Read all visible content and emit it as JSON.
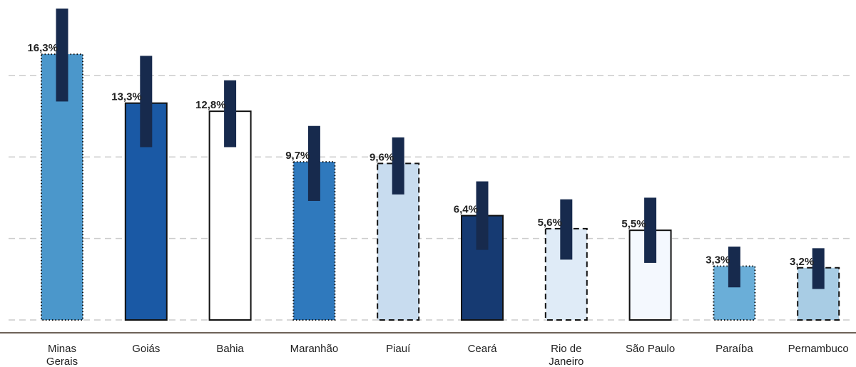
{
  "chart_data": {
    "type": "bar",
    "categories": [
      [
        "Minas",
        "Gerais"
      ],
      [
        "Goiás"
      ],
      [
        "Bahia"
      ],
      [
        "Maranhão"
      ],
      [
        "Piauí"
      ],
      [
        "Ceará"
      ],
      [
        "Rio de",
        "Janeiro"
      ],
      [
        "São Paulo"
      ],
      [
        "Paraíba"
      ],
      [
        "Pernambuco"
      ]
    ],
    "values": [
      16.3,
      13.3,
      12.8,
      9.7,
      9.6,
      6.4,
      5.6,
      5.5,
      3.3,
      3.2
    ],
    "value_labels": [
      "16,3%",
      "13,3%",
      "12,8%",
      "9,7%",
      "9,6%",
      "6,4%",
      "5,6%",
      "5,5%",
      "3,3%",
      "3,2%"
    ],
    "error_ranges": [
      [
        13.4,
        19.1
      ],
      [
        10.6,
        16.2
      ],
      [
        10.6,
        14.7
      ],
      [
        7.3,
        11.9
      ],
      [
        7.7,
        11.2
      ],
      [
        4.3,
        8.5
      ],
      [
        3.7,
        7.4
      ],
      [
        3.5,
        7.5
      ],
      [
        2.0,
        4.5
      ],
      [
        1.9,
        4.4
      ]
    ],
    "ylim": [
      0,
      19.1
    ],
    "gridlines": [
      5,
      10,
      15
    ],
    "grid": true,
    "bar_fills": [
      "#4b97cb",
      "#1a59a5",
      "#ffffff",
      "#2f79bd",
      "#c8dcef",
      "#163a72",
      "#dfebf7",
      "#f4f8fe",
      "#6aaed8",
      "#a8cce4"
    ],
    "bar_borders": [
      "dotted",
      "solid",
      "solid",
      "dotted",
      "dashed",
      "solid",
      "dashed",
      "solid",
      "dotted",
      "dashed"
    ],
    "error_bar_color": "#172a4d",
    "baseline_color": "#6e6258",
    "grid_color": "#cccccc"
  }
}
